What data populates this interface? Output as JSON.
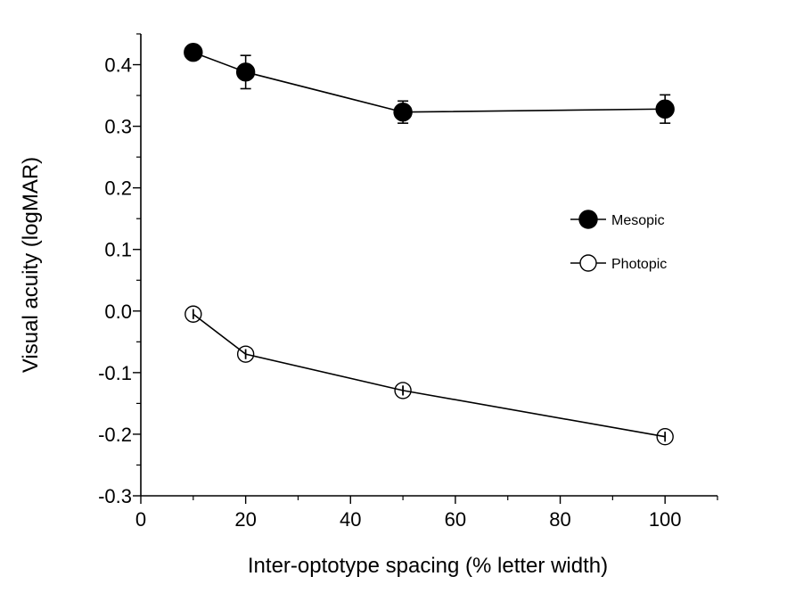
{
  "chart_data": {
    "type": "line",
    "title": "",
    "xlabel": "Inter-optotype spacing (% letter width)",
    "ylabel": "Visual acuity (logMAR)",
    "xlim": [
      0,
      110
    ],
    "ylim": [
      -0.3,
      0.45
    ],
    "x_ticks": [
      0,
      20,
      40,
      60,
      80,
      100
    ],
    "x_tick_labels": [
      "0",
      "20",
      "40",
      "60",
      "80",
      "100"
    ],
    "y_ticks": [
      -0.3,
      -0.2,
      -0.1,
      0.0,
      0.1,
      0.2,
      0.3,
      0.4
    ],
    "y_tick_labels": [
      "-0.3",
      "-0.2",
      "-0.1",
      "0.0",
      "0.1",
      "0.2",
      "0.3",
      "0.4"
    ],
    "grid": false,
    "legend_position": "right",
    "series": [
      {
        "name": "Mesopic",
        "marker": "filled-circle",
        "color": "#000000",
        "x": [
          10,
          20,
          50,
          100
        ],
        "y": [
          0.42,
          0.388,
          0.323,
          0.328
        ],
        "error": [
          0.0,
          0.027,
          0.018,
          0.023
        ]
      },
      {
        "name": "Photopic",
        "marker": "open-circle",
        "color": "#000000",
        "x": [
          10,
          20,
          50,
          100
        ],
        "y": [
          -0.005,
          -0.07,
          -0.129,
          -0.204
        ],
        "error": [
          0.008,
          0.008,
          0.008,
          0.008
        ]
      }
    ]
  }
}
